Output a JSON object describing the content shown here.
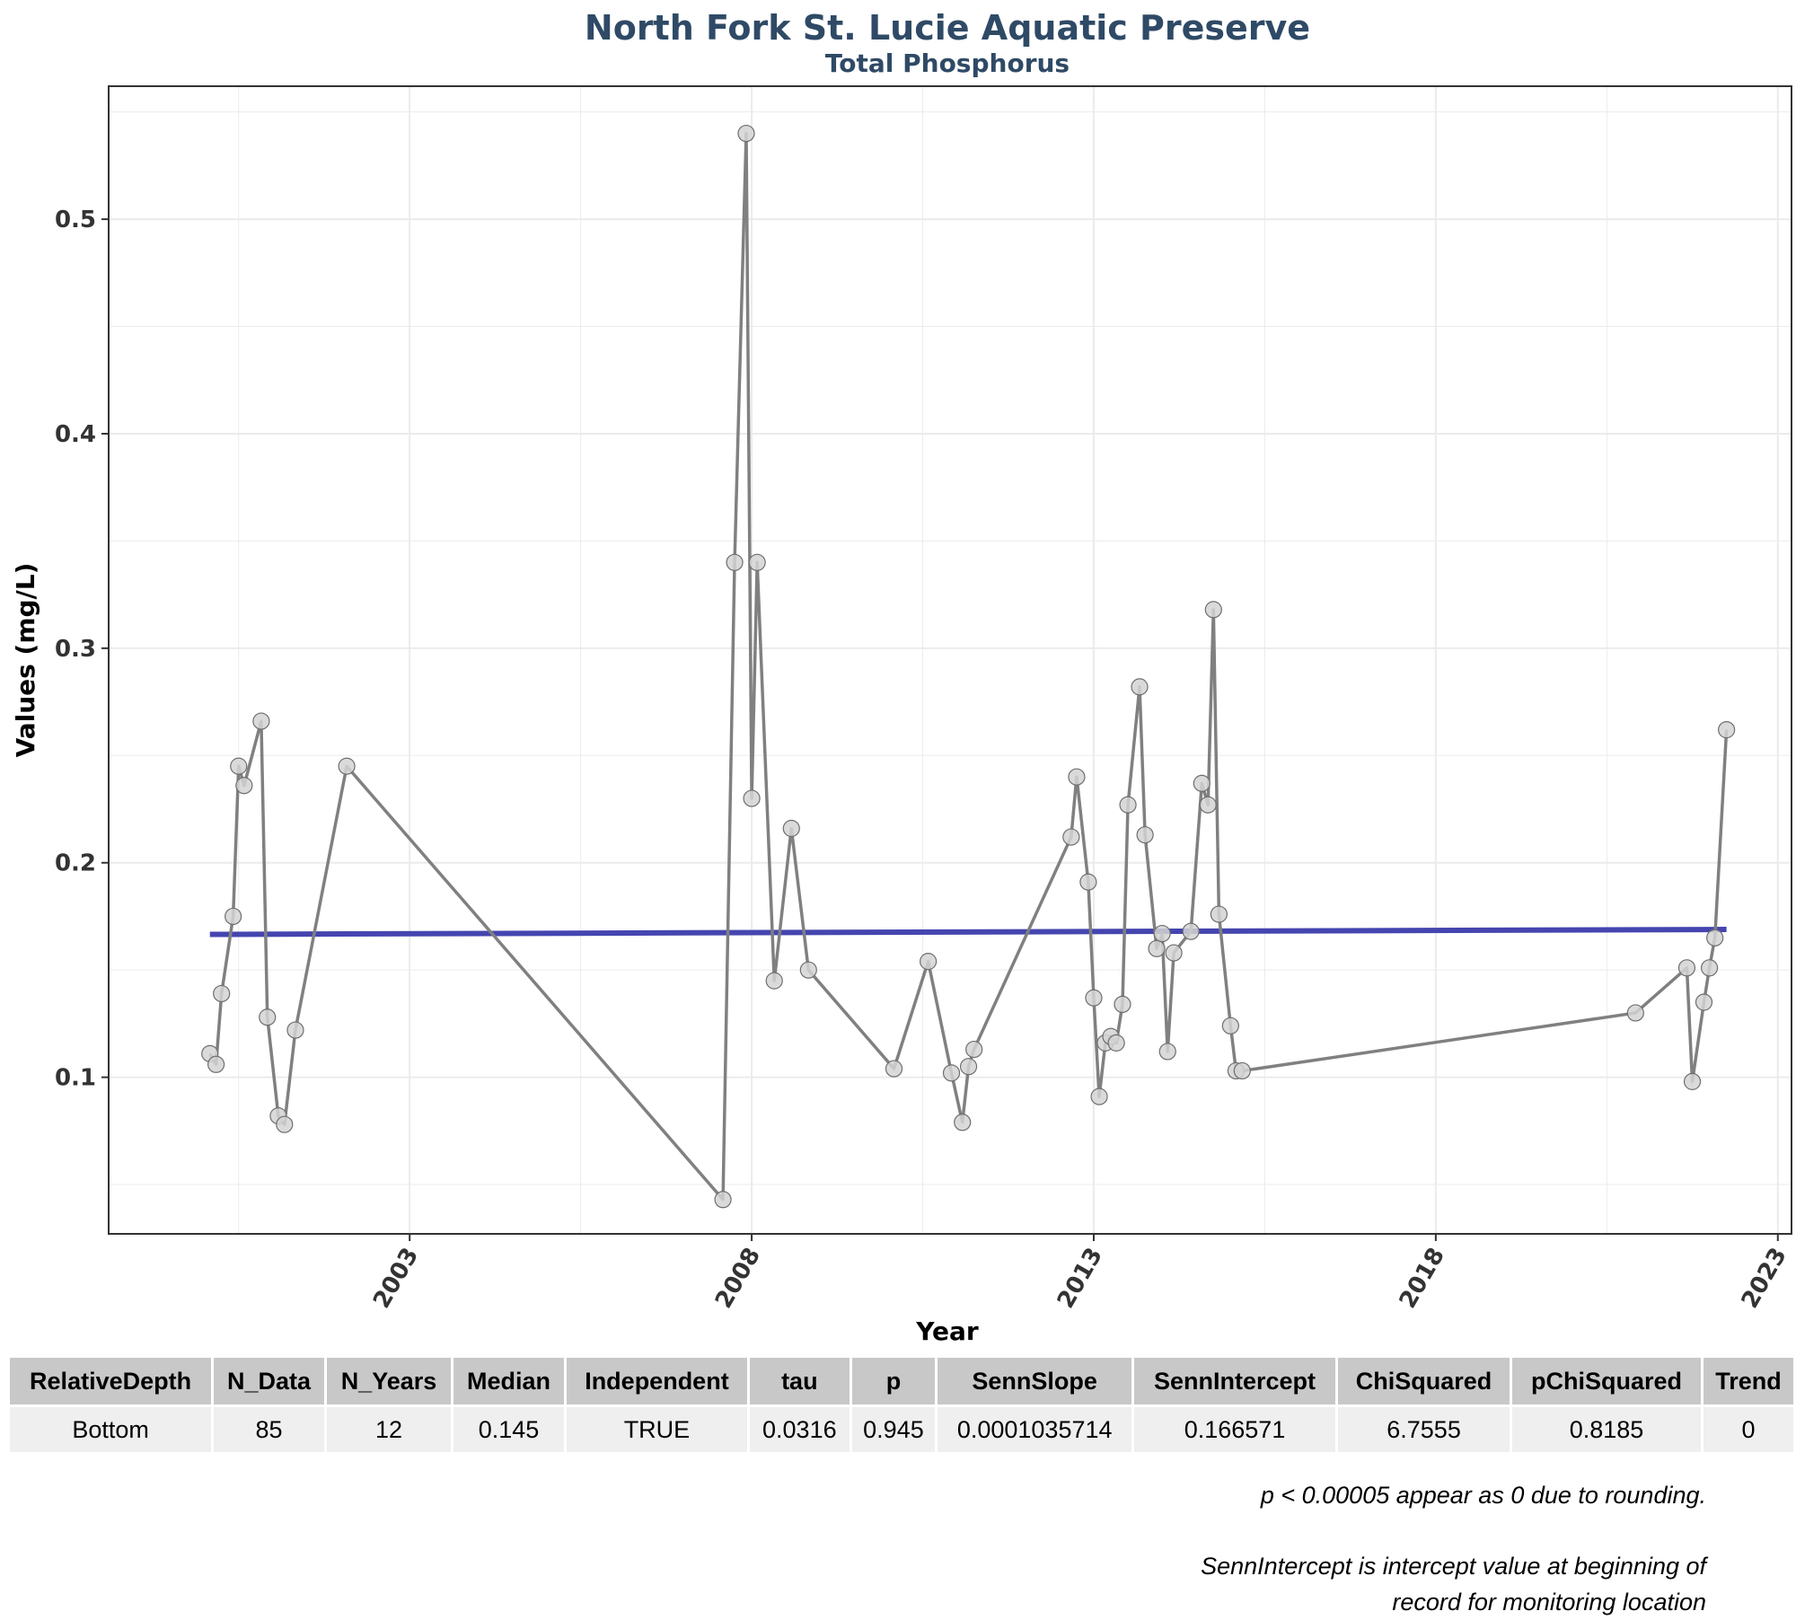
{
  "chart_data": {
    "type": "line",
    "title": "North Fork St. Lucie Aquatic Preserve",
    "subtitle": "Total Phosphorus",
    "xlabel": "Year",
    "ylabel": "Values (mg/L)",
    "xlim": [
      1998.6,
      2023.2
    ],
    "ylim": [
      0.027,
      0.562
    ],
    "x_ticks": [
      2003,
      2008,
      2013,
      2018,
      2023
    ],
    "x_tick_labels": [
      "2003",
      "2008",
      "2013",
      "2018",
      "2023"
    ],
    "y_ticks": [
      0.1,
      0.2,
      0.3,
      0.4,
      0.5
    ],
    "y_tick_labels": [
      "0.1",
      "0.2",
      "0.3",
      "0.4",
      "0.5"
    ],
    "grid": true,
    "series": [
      {
        "color": "#808080",
        "marker": "circle",
        "x": [
          2000.08,
          2000.17,
          2000.25,
          2000.42,
          2000.5,
          2000.58,
          2000.83,
          2000.92,
          2001.08,
          2001.17,
          2001.33,
          2002.08,
          2007.58,
          2007.75,
          2007.92,
          2008.0,
          2008.08,
          2008.33,
          2008.58,
          2008.83,
          2010.08,
          2010.58,
          2010.92,
          2011.08,
          2011.17,
          2011.25,
          2012.67,
          2012.75,
          2012.92,
          2013.0,
          2013.08,
          2013.17,
          2013.25,
          2013.33,
          2013.42,
          2013.5,
          2013.67,
          2013.75,
          2013.92,
          2014.0,
          2014.08,
          2014.17,
          2014.42,
          2014.58,
          2014.67,
          2014.75,
          2014.83,
          2015.0,
          2015.08,
          2015.17,
          2020.92,
          2021.67,
          2021.75,
          2021.92,
          2022.0,
          2022.08,
          2022.25
        ],
        "y": [
          0.111,
          0.106,
          0.139,
          0.175,
          0.245,
          0.236,
          0.266,
          0.128,
          0.082,
          0.078,
          0.122,
          0.245,
          0.043,
          0.34,
          0.54,
          0.23,
          0.34,
          0.145,
          0.216,
          0.15,
          0.104,
          0.154,
          0.102,
          0.079,
          0.105,
          0.113,
          0.212,
          0.24,
          0.191,
          0.137,
          0.091,
          0.116,
          0.119,
          0.116,
          0.134,
          0.227,
          0.282,
          0.213,
          0.16,
          0.167,
          0.112,
          0.158,
          0.168,
          0.237,
          0.227,
          0.318,
          0.176,
          0.124,
          0.103,
          0.103,
          0.13,
          0.151,
          0.098,
          0.135,
          0.151,
          0.165,
          0.262
        ]
      },
      {
        "color": "#4545b0",
        "style": "trend",
        "x": [
          2000.08,
          2022.25
        ],
        "y": [
          0.1666,
          0.1689
        ]
      }
    ]
  },
  "table": {
    "headers": [
      "RelativeDepth",
      "N_Data",
      "N_Years",
      "Median",
      "Independent",
      "tau",
      "p",
      "SennSlope",
      "SennIntercept",
      "ChiSquared",
      "pChiSquared",
      "Trend"
    ],
    "rows": [
      [
        "Bottom",
        "85",
        "12",
        "0.145",
        "TRUE",
        "0.0316",
        "0.945",
        "0.0001035714",
        "0.166571",
        "6.7555",
        "0.8185",
        "0"
      ]
    ]
  },
  "notes": {
    "rounding": "p < 0.00005 appear as 0 due to rounding.",
    "intercept_line1": "SennIntercept is intercept value at beginning of",
    "intercept_line2": "record for monitoring location"
  }
}
